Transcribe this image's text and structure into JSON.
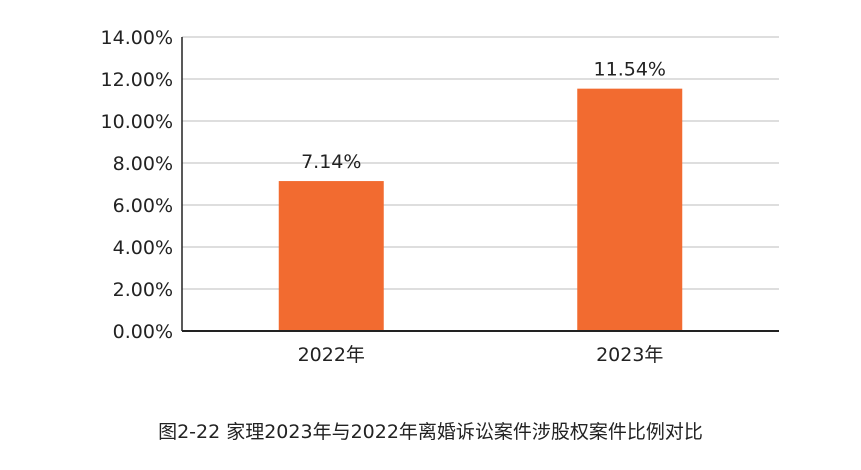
{
  "chart_data": {
    "type": "bar",
    "categories": [
      "2022年",
      "2023年"
    ],
    "values": [
      7.14,
      11.54
    ],
    "value_labels": [
      "7.14%",
      "11.54%"
    ],
    "ylim": [
      0,
      14
    ],
    "yticks": [
      0,
      2,
      4,
      6,
      8,
      10,
      12,
      14
    ],
    "ytick_labels": [
      "0.00%",
      "2.00%",
      "4.00%",
      "6.00%",
      "8.00%",
      "10.00%",
      "12.00%",
      "14.00%"
    ],
    "grid": true,
    "legend": "none",
    "bar_color": "#f26b30",
    "caption": "图2-22  家理2023年与2022年离婚诉讼案件涉股权案件比例对比"
  }
}
